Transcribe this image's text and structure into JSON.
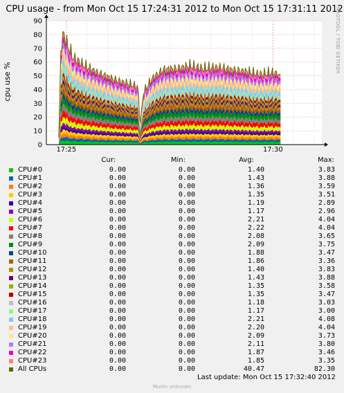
{
  "chart_data": {
    "type": "area",
    "title": "CPU usage - from Mon Oct 15 17:24:31 2012 to Mon Oct 15 17:31:11 2012",
    "ylabel": "cpu use %",
    "ylim": [
      0,
      90
    ],
    "yticks": [
      "0",
      "10",
      "20",
      "30",
      "40",
      "50",
      "60",
      "70",
      "80",
      "90"
    ],
    "xtick_labels": [
      "17:25",
      "17:30"
    ],
    "x_range": [
      "17:24:31",
      "17:31:11"
    ],
    "data_start": "17:24:49",
    "data_end": "17:30:11",
    "grid": true,
    "stacked": true,
    "total_profile": [
      {
        "t": "17:24:49",
        "y": 5
      },
      {
        "t": "17:24:52",
        "y": 70
      },
      {
        "t": "17:24:56",
        "y": 81
      },
      {
        "t": "17:25:00",
        "y": 74
      },
      {
        "t": "17:25:10",
        "y": 63
      },
      {
        "t": "17:25:30",
        "y": 56
      },
      {
        "t": "17:25:50",
        "y": 51
      },
      {
        "t": "17:26:10",
        "y": 47
      },
      {
        "t": "17:26:30",
        "y": 44
      },
      {
        "t": "17:26:44",
        "y": 42
      },
      {
        "t": "17:26:47",
        "y": 14
      },
      {
        "t": "17:26:52",
        "y": 38
      },
      {
        "t": "17:27:05",
        "y": 48
      },
      {
        "t": "17:27:20",
        "y": 54
      },
      {
        "t": "17:27:40",
        "y": 55
      },
      {
        "t": "17:28:00",
        "y": 57
      },
      {
        "t": "17:28:20",
        "y": 55
      },
      {
        "t": "17:28:40",
        "y": 56
      },
      {
        "t": "17:29:00",
        "y": 54
      },
      {
        "t": "17:29:20",
        "y": 53
      },
      {
        "t": "17:29:40",
        "y": 51
      },
      {
        "t": "17:30:00",
        "y": 52
      },
      {
        "t": "17:30:11",
        "y": 51
      }
    ]
  },
  "watermark": "RRDTOOL / TOBI OETIKER",
  "legend": {
    "headers": {
      "cur": "Cur:",
      "min": "Min:",
      "avg": "Avg:",
      "max": "Max:"
    },
    "rows": [
      {
        "name": "CPU#0",
        "color": "#00cc00",
        "cur": "0.00",
        "min": "0.00",
        "avg": "1.40",
        "max": "3.83"
      },
      {
        "name": "CPU#1",
        "color": "#0066b3",
        "cur": "0.00",
        "min": "0.00",
        "avg": "1.43",
        "max": "3.88"
      },
      {
        "name": "CPU#2",
        "color": "#ff8000",
        "cur": "0.00",
        "min": "0.00",
        "avg": "1.36",
        "max": "3.59"
      },
      {
        "name": "CPU#3",
        "color": "#ffcc00",
        "cur": "0.00",
        "min": "0.00",
        "avg": "1.35",
        "max": "3.51"
      },
      {
        "name": "CPU#4",
        "color": "#330099",
        "cur": "0.00",
        "min": "0.00",
        "avg": "1.19",
        "max": "2.89"
      },
      {
        "name": "CPU#5",
        "color": "#990099",
        "cur": "0.00",
        "min": "0.00",
        "avg": "1.17",
        "max": "2.96"
      },
      {
        "name": "CPU#6",
        "color": "#ccff00",
        "cur": "0.00",
        "min": "0.00",
        "avg": "2.21",
        "max": "4.04"
      },
      {
        "name": "CPU#7",
        "color": "#ff0000",
        "cur": "0.00",
        "min": "0.00",
        "avg": "2.22",
        "max": "4.04"
      },
      {
        "name": "CPU#8",
        "color": "#808080",
        "cur": "0.00",
        "min": "0.00",
        "avg": "2.08",
        "max": "3.65"
      },
      {
        "name": "CPU#9",
        "color": "#008f00",
        "cur": "0.00",
        "min": "0.00",
        "avg": "2.09",
        "max": "3.75"
      },
      {
        "name": "CPU#10",
        "color": "#00487d",
        "cur": "0.00",
        "min": "0.00",
        "avg": "1.88",
        "max": "3.47"
      },
      {
        "name": "CPU#11",
        "color": "#b35a00",
        "cur": "0.00",
        "min": "0.00",
        "avg": "1.86",
        "max": "3.36"
      },
      {
        "name": "CPU#12",
        "color": "#b38f00",
        "cur": "0.00",
        "min": "0.00",
        "avg": "1.40",
        "max": "3.83"
      },
      {
        "name": "CPU#13",
        "color": "#6b006b",
        "cur": "0.00",
        "min": "0.00",
        "avg": "1.43",
        "max": "3.88"
      },
      {
        "name": "CPU#14",
        "color": "#8fb300",
        "cur": "0.00",
        "min": "0.00",
        "avg": "1.35",
        "max": "3.58"
      },
      {
        "name": "CPU#15",
        "color": "#b30000",
        "cur": "0.00",
        "min": "0.00",
        "avg": "1.35",
        "max": "3.47"
      },
      {
        "name": "CPU#16",
        "color": "#bebebe",
        "cur": "0.00",
        "min": "0.00",
        "avg": "1.18",
        "max": "3.03"
      },
      {
        "name": "CPU#17",
        "color": "#80ff80",
        "cur": "0.00",
        "min": "0.00",
        "avg": "1.17",
        "max": "3.00"
      },
      {
        "name": "CPU#18",
        "color": "#80c9ff",
        "cur": "0.00",
        "min": "0.00",
        "avg": "2.21",
        "max": "4.08"
      },
      {
        "name": "CPU#19",
        "color": "#ffc080",
        "cur": "0.00",
        "min": "0.00",
        "avg": "2.20",
        "max": "4.04"
      },
      {
        "name": "CPU#20",
        "color": "#ffe680",
        "cur": "0.00",
        "min": "0.00",
        "avg": "2.09",
        "max": "3.73"
      },
      {
        "name": "CPU#21",
        "color": "#aa80ff",
        "cur": "0.00",
        "min": "0.00",
        "avg": "2.11",
        "max": "3.80"
      },
      {
        "name": "CPU#22",
        "color": "#ee00cc",
        "cur": "0.00",
        "min": "0.00",
        "avg": "1.87",
        "max": "3.46"
      },
      {
        "name": "CPU#23",
        "color": "#ff8080",
        "cur": "0.00",
        "min": "0.00",
        "avg": "1.85",
        "max": "3.35"
      },
      {
        "name": "All CPUs",
        "color": "#666600",
        "cur": "0.00",
        "min": "0.00",
        "avg": "40.47",
        "max": "82.30"
      }
    ]
  },
  "last_update": "Last update:  Mon Oct 15 17:32:40 2012",
  "footer": "Munin unknown"
}
